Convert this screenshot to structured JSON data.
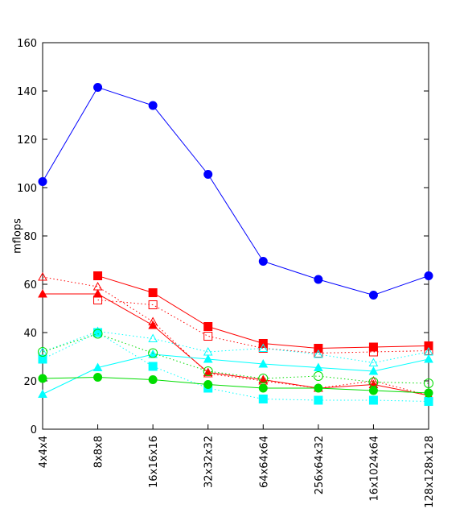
{
  "chart_data": {
    "type": "line",
    "title": "",
    "xlabel": "",
    "ylabel": "mflops",
    "ylim": [
      0,
      160
    ],
    "yticks": [
      0,
      20,
      40,
      60,
      80,
      100,
      120,
      140,
      160
    ],
    "ytick_labels": [
      "0",
      "20",
      "40",
      "60",
      "80",
      "100",
      "120",
      "140",
      "160"
    ],
    "grid": false,
    "legend": "none",
    "categories": [
      "4x4x4",
      "8x8x8",
      "16x16x16",
      "32x32x32",
      "64x64x64",
      "256x64x32",
      "16x1024x64",
      "128x128x128"
    ],
    "series": [
      {
        "color": "#0000ff",
        "marker": "circle",
        "filled": true,
        "dash": "solid",
        "values": [
          102.5,
          141.5,
          134,
          105.5,
          69.5,
          62,
          55.5,
          63.5
        ]
      },
      {
        "color": "#ff0000",
        "marker": "square",
        "filled": true,
        "dash": "solid",
        "values": [
          null,
          63.5,
          56.5,
          42.5,
          35.5,
          33.5,
          34,
          34.5
        ]
      },
      {
        "color": "#ff0000",
        "marker": "square",
        "filled": false,
        "dash": "dotted",
        "values": [
          null,
          53.5,
          51.5,
          38.5,
          33.5,
          31.5,
          32,
          32.5
        ]
      },
      {
        "color": "#ff0000",
        "marker": "triangle",
        "filled": false,
        "dash": "dotted",
        "values": [
          63,
          59,
          44.5,
          23,
          20,
          17,
          20,
          14
        ]
      },
      {
        "color": "#ff0000",
        "marker": "triangle",
        "filled": true,
        "dash": "solid",
        "values": [
          56,
          56,
          43,
          23.5,
          20.5,
          17,
          18.5,
          14
        ]
      },
      {
        "color": "#00ffff",
        "marker": "triangle",
        "filled": false,
        "dash": "dotted",
        "values": [
          32,
          40.5,
          37.5,
          32,
          33.5,
          31,
          27.5,
          32
        ]
      },
      {
        "color": "#00ffff",
        "marker": "square",
        "filled": true,
        "dash": "dotted",
        "values": [
          29,
          40,
          26,
          17,
          12.5,
          12,
          12,
          11.5
        ]
      },
      {
        "color": "#00ffff",
        "marker": "triangle",
        "filled": true,
        "dash": "solid",
        "values": [
          14.5,
          25.5,
          31,
          29,
          27,
          25.5,
          24,
          29
        ]
      },
      {
        "color": "#00dd00",
        "marker": "circle",
        "filled": false,
        "dash": "dotted",
        "values": [
          32,
          39.5,
          31.5,
          24,
          21,
          22,
          19.5,
          19
        ]
      },
      {
        "color": "#00dd00",
        "marker": "circle",
        "filled": true,
        "dash": "solid",
        "values": [
          21,
          21.5,
          20.5,
          18.5,
          17,
          17,
          16,
          15
        ]
      }
    ]
  }
}
